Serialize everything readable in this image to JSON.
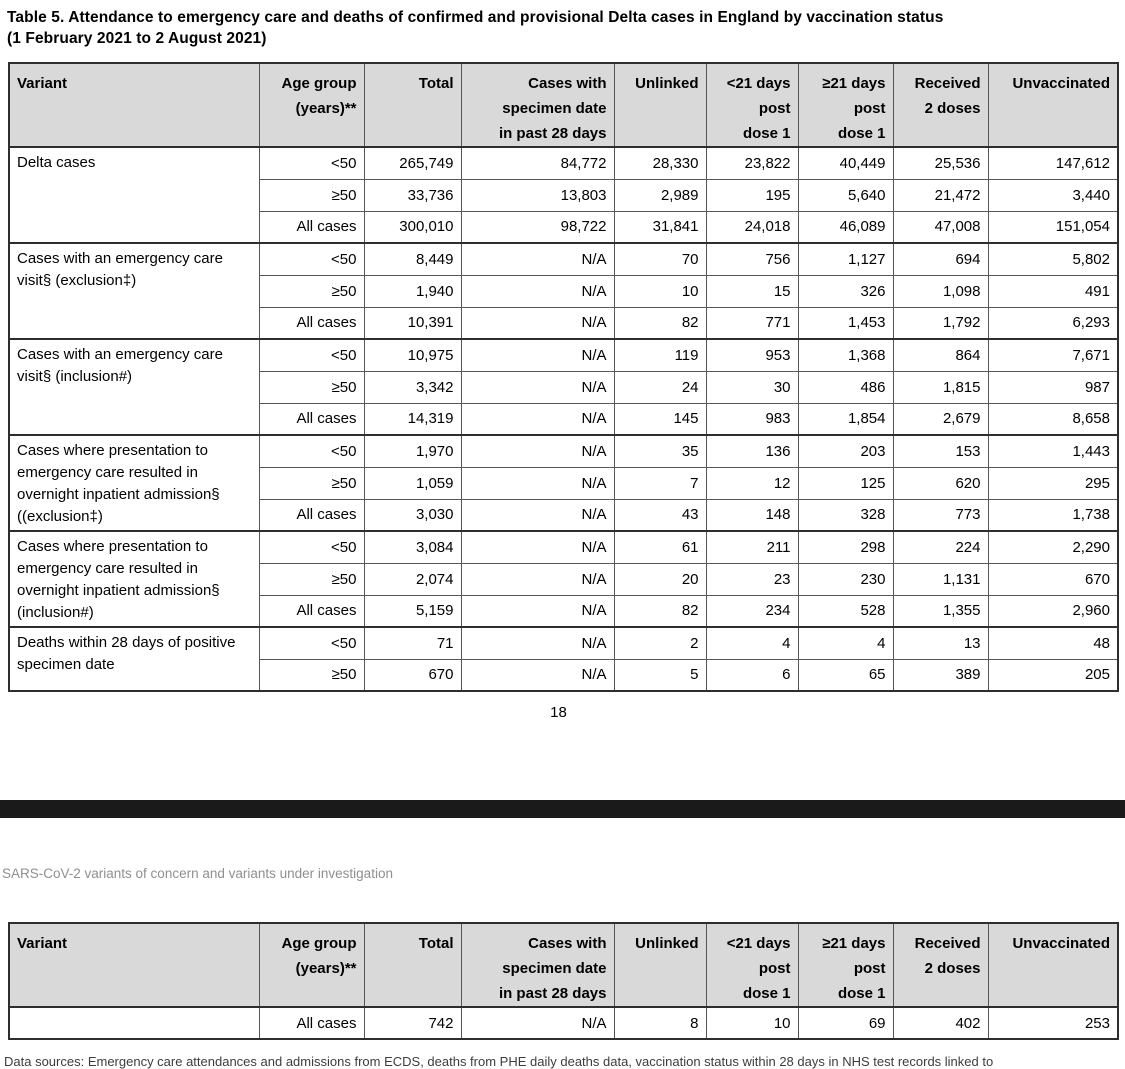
{
  "page": {
    "title_line1": "Table 5. Attendance to emergency care and deaths of confirmed and provisional Delta cases in England by vaccination status",
    "title_line2": "(1 February 2021 to 2 August 2021)",
    "page_number": "18",
    "section_note": "SARS-CoV-2 variants of concern and variants under investigation",
    "footnote_clipped": "Data sources: Emergency care attendances and admissions from ECDS, deaths from PHE daily deaths data, vaccination status within 28 days in NHS test records linked to"
  },
  "colors": {
    "header_cell_background": "#d9d9d9",
    "divider_bar": "#1a1a1a",
    "section_note_text": "#8f8f8f",
    "table_border": "#2e2e2e"
  },
  "table1": {
    "headers": [
      "Variant",
      "Age group\n(years)**",
      "Total",
      "Cases with\nspecimen date\nin past 28 days",
      "Unlinked",
      "<21 days\npost\ndose 1",
      "≥21 days\npost\ndose 1",
      "Received\n2 doses",
      "Unvaccinated"
    ],
    "groups": [
      {
        "variant": "Delta cases",
        "rows": [
          {
            "age": "<50",
            "values": [
              "265,749",
              "84,772",
              "28,330",
              "23,822",
              "40,449",
              "25,536",
              "147,612"
            ]
          },
          {
            "age": "≥50",
            "values": [
              "33,736",
              "13,803",
              "2,989",
              "195",
              "5,640",
              "21,472",
              "3,440"
            ]
          },
          {
            "age": "All cases",
            "values": [
              "300,010",
              "98,722",
              "31,841",
              "24,018",
              "46,089",
              "47,008",
              "151,054"
            ]
          }
        ]
      },
      {
        "variant": "Cases with an emergency care visit§ (exclusion‡)",
        "rows": [
          {
            "age": "<50",
            "values": [
              "8,449",
              "N/A",
              "70",
              "756",
              "1,127",
              "694",
              "5,802"
            ]
          },
          {
            "age": "≥50",
            "values": [
              "1,940",
              "N/A",
              "10",
              "15",
              "326",
              "1,098",
              "491"
            ]
          },
          {
            "age": "All cases",
            "values": [
              "10,391",
              "N/A",
              "82",
              "771",
              "1,453",
              "1,792",
              "6,293"
            ]
          }
        ]
      },
      {
        "variant": "Cases with an emergency care visit§ (inclusion#)",
        "rows": [
          {
            "age": "<50",
            "values": [
              "10,975",
              "N/A",
              "119",
              "953",
              "1,368",
              "864",
              "7,671"
            ]
          },
          {
            "age": "≥50",
            "values": [
              "3,342",
              "N/A",
              "24",
              "30",
              "486",
              "1,815",
              "987"
            ]
          },
          {
            "age": "All cases",
            "values": [
              "14,319",
              "N/A",
              "145",
              "983",
              "1,854",
              "2,679",
              "8,658"
            ]
          }
        ]
      },
      {
        "variant": "Cases where presentation to emergency care resulted in overnight inpatient admission§ ((exclusion‡)",
        "rows": [
          {
            "age": "<50",
            "values": [
              "1,970",
              "N/A",
              "35",
              "136",
              "203",
              "153",
              "1,443"
            ]
          },
          {
            "age": "≥50",
            "values": [
              "1,059",
              "N/A",
              "7",
              "12",
              "125",
              "620",
              "295"
            ]
          },
          {
            "age": "All cases",
            "values": [
              "3,030",
              "N/A",
              "43",
              "148",
              "328",
              "773",
              "1,738"
            ]
          }
        ]
      },
      {
        "variant": "Cases where presentation to emergency care resulted in overnight inpatient admission§ (inclusion#)",
        "rows": [
          {
            "age": "<50",
            "values": [
              "3,084",
              "N/A",
              "61",
              "211",
              "298",
              "224",
              "2,290"
            ]
          },
          {
            "age": "≥50",
            "values": [
              "2,074",
              "N/A",
              "20",
              "23",
              "230",
              "1,131",
              "670"
            ]
          },
          {
            "age": "All cases",
            "values": [
              "5,159",
              "N/A",
              "82",
              "234",
              "528",
              "1,355",
              "2,960"
            ]
          }
        ]
      },
      {
        "variant": "Deaths within 28 days of positive specimen date",
        "rows": [
          {
            "age": "<50",
            "values": [
              "71",
              "N/A",
              "2",
              "4",
              "4",
              "13",
              "48"
            ]
          },
          {
            "age": "≥50",
            "values": [
              "670",
              "N/A",
              "5",
              "6",
              "65",
              "389",
              "205"
            ]
          }
        ]
      }
    ]
  },
  "table2": {
    "headers": [
      "Variant",
      "Age group\n(years)**",
      "Total",
      "Cases with\nspecimen date\nin past 28 days",
      "Unlinked",
      "<21 days\npost\ndose 1",
      "≥21 days\npost\ndose 1",
      "Received\n2 doses",
      "Unvaccinated"
    ],
    "groups": [
      {
        "variant": "",
        "rows": [
          {
            "age": "All cases",
            "values": [
              "742",
              "N/A",
              "8",
              "10",
              "69",
              "402",
              "253"
            ]
          }
        ]
      }
    ]
  }
}
